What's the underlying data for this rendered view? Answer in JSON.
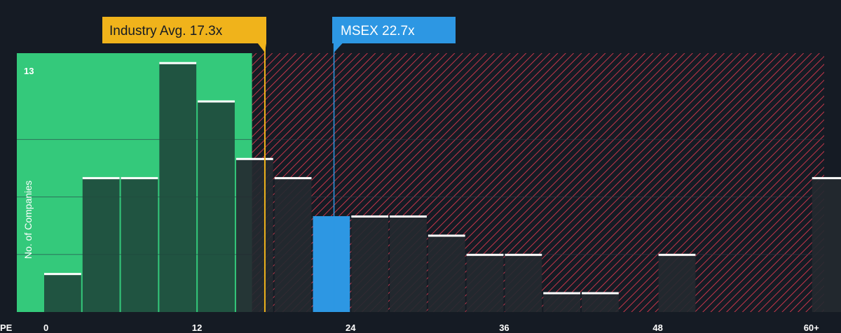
{
  "chart_data": {
    "type": "bar",
    "title": "",
    "xlabel": "PE",
    "ylabel": "No. of Companies",
    "x_ticks": [
      "0",
      "12",
      "24",
      "36",
      "48",
      "60+"
    ],
    "x_tick_values": [
      0,
      12,
      24,
      36,
      48,
      60
    ],
    "xlim": [
      0,
      61
    ],
    "ylim": [
      0,
      13.5
    ],
    "y_top_label": "13",
    "y_top_value": 13,
    "grid": true,
    "bins": [
      {
        "x": 0,
        "value": 2
      },
      {
        "x": 3,
        "value": 7
      },
      {
        "x": 6,
        "value": 7
      },
      {
        "x": 9,
        "value": 13
      },
      {
        "x": 12,
        "value": 11
      },
      {
        "x": 15,
        "value": 8
      },
      {
        "x": 18,
        "value": 7
      },
      {
        "x": 21,
        "value": 5,
        "highlight": true
      },
      {
        "x": 24,
        "value": 5
      },
      {
        "x": 27,
        "value": 5
      },
      {
        "x": 30,
        "value": 4
      },
      {
        "x": 33,
        "value": 3
      },
      {
        "x": 36,
        "value": 3
      },
      {
        "x": 39,
        "value": 1
      },
      {
        "x": 42,
        "value": 1
      },
      {
        "x": 45,
        "value": 0
      },
      {
        "x": 48,
        "value": 3
      },
      {
        "x": 51,
        "value": 0
      },
      {
        "x": 54,
        "value": 0
      },
      {
        "x": 57,
        "value": 0
      },
      {
        "x": 60,
        "value": 7
      }
    ],
    "bin_width": 3,
    "industry_avg": {
      "label": "Industry Avg. 17.3x",
      "value": 17.3
    },
    "company": {
      "label": "MSEX 22.7x",
      "value": 22.7
    },
    "undervalued_until": 16.3
  },
  "colors": {
    "background": "#151b24",
    "green_zone": "#34c97b",
    "green_bar": "#1e4a3c",
    "red_bar": "#242930",
    "hatch": "#c4364a",
    "highlight_bar": "#2d97e3",
    "industry": "#f0b31b",
    "company": "#2d97e3",
    "cap": "#ffffff",
    "grid": "#2a3946"
  }
}
